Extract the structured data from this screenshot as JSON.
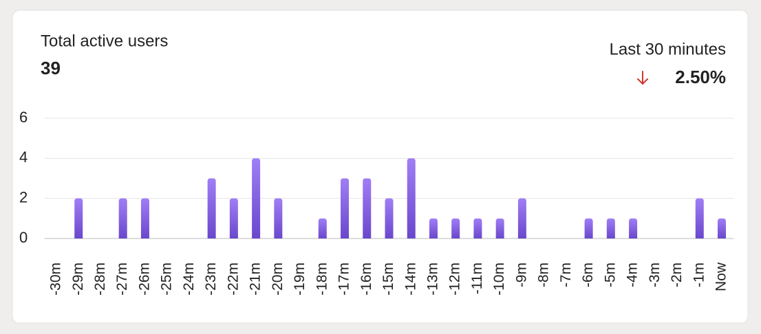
{
  "chart_data": {
    "type": "bar",
    "title": "Total active users",
    "total": 39,
    "period": "Last 30 minutes",
    "change": "2.50%",
    "categories": [
      "-30m",
      "-29m",
      "-28m",
      "-27m",
      "-26m",
      "-25m",
      "-24m",
      "-23m",
      "-22m",
      "-21m",
      "-20m",
      "-19m",
      "-18m",
      "-17m",
      "-16m",
      "-15m",
      "-14m",
      "-13m",
      "-12m",
      "-11m",
      "-10m",
      "-9m",
      "-8m",
      "-7m",
      "-6m",
      "-5m",
      "-4m",
      "-3m",
      "-2m",
      "-1m",
      "Now"
    ],
    "values": [
      0,
      2,
      0,
      2,
      2,
      0,
      0,
      3,
      2,
      4,
      2,
      0,
      1,
      3,
      3,
      2,
      4,
      1,
      1,
      1,
      1,
      2,
      0,
      0,
      1,
      1,
      1,
      0,
      0,
      2,
      1
    ],
    "color": "#7c5ae0",
    "ylim": [
      0,
      6
    ],
    "yticks": [
      0,
      2,
      4,
      6
    ],
    "grid": true
  }
}
